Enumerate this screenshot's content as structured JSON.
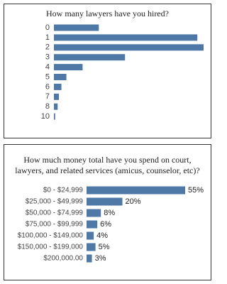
{
  "chart_data": [
    {
      "type": "bar",
      "orientation": "horizontal",
      "title": "How many lawyers have you hired?",
      "categories": [
        "0",
        "1",
        "2",
        "3",
        "4",
        "5",
        "6",
        "7",
        "8",
        "10"
      ],
      "values": [
        18,
        57.5,
        60,
        28.5,
        11.5,
        5,
        3,
        2,
        1.5,
        0.5
      ],
      "color": "#4e79a7",
      "xlim": [
        0,
        60
      ]
    },
    {
      "type": "bar",
      "orientation": "horizontal",
      "title": "How much money total have you spend on court, lawyers, and related services (amicus, counselor, etc)?",
      "categories": [
        "$0 - $24,999",
        "$25,000 - $49,999",
        "$50,000 - $74,999",
        "$75,000 - $99,999",
        "$100,000 - $149,000",
        "$150,000 - $199,000",
        "$200,000.00"
      ],
      "values": [
        55,
        20,
        8,
        6,
        4,
        5,
        3
      ],
      "value_labels": [
        "55%",
        "20%",
        "8%",
        "6%",
        "4%",
        "5%",
        "3%"
      ],
      "color": "#4e79a7",
      "xlim": [
        0,
        55
      ]
    }
  ]
}
